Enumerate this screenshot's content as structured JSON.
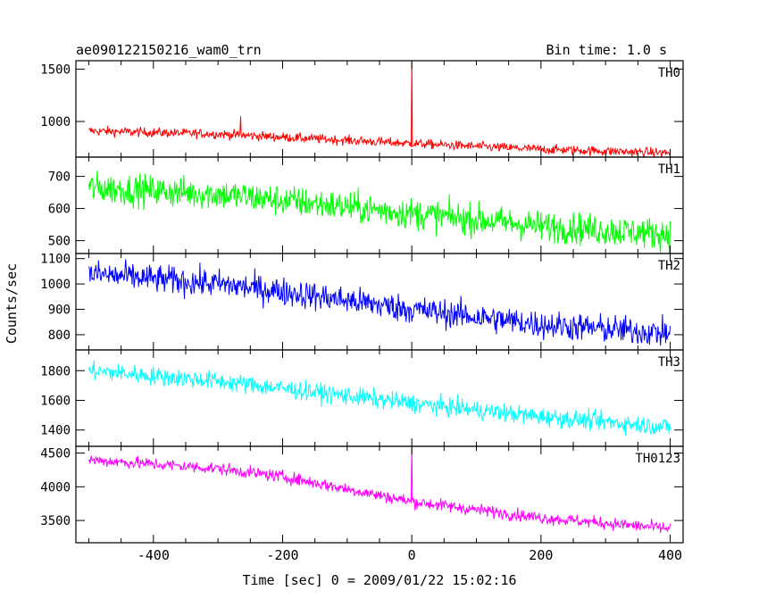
{
  "header": {
    "left": "ae090122150216_wam0_trn",
    "right": "Bin time: 1.0 s"
  },
  "ylabel": "Counts/sec",
  "xlabel": "Time [sec] 0 = 2009/01/22 15:02:16",
  "chart_data": {
    "type": "line",
    "xlim": [
      -520,
      420
    ],
    "x_ticks": [
      -400,
      -200,
      0,
      200,
      400
    ],
    "bin_time_s": 1.0,
    "t_start": -500,
    "t_end": 400,
    "grid": false,
    "panels": [
      {
        "name": "TH0",
        "color": "#ff0000",
        "ylim": [
          660,
          1580
        ],
        "y_ticks": [
          1000,
          1500
        ],
        "trend": {
          "x": [
            -500,
            -300,
            -200,
            0,
            200,
            400
          ],
          "y": [
            910,
            880,
            850,
            790,
            735,
            700
          ]
        },
        "noise": 32,
        "spikes": [
          {
            "x": 0,
            "y": 1580
          },
          {
            "x": -265,
            "y": 1050
          },
          {
            "x": 30,
            "y": 830
          }
        ]
      },
      {
        "name": "TH1",
        "color": "#00ff00",
        "ylim": [
          460,
          760
        ],
        "y_ticks": [
          500,
          600,
          700
        ],
        "trend": {
          "x": [
            -500,
            -300,
            -200,
            0,
            200,
            400
          ],
          "y": [
            665,
            645,
            625,
            585,
            545,
            520
          ]
        },
        "noise": 35,
        "spikes": []
      },
      {
        "name": "TH2",
        "color": "#0000ff",
        "ylim": [
          740,
          1120
        ],
        "y_ticks": [
          800,
          900,
          1000,
          1100
        ],
        "trend": {
          "x": [
            -500,
            -300,
            -200,
            0,
            200,
            400
          ],
          "y": [
            1040,
            1000,
            970,
            900,
            840,
            805
          ]
        },
        "noise": 40,
        "spikes": []
      },
      {
        "name": "TH3",
        "color": "#00ffff",
        "ylim": [
          1290,
          1940
        ],
        "y_ticks": [
          1400,
          1600,
          1800
        ],
        "trend": {
          "x": [
            -500,
            -300,
            -200,
            0,
            200,
            400
          ],
          "y": [
            1800,
            1730,
            1680,
            1580,
            1490,
            1420
          ]
        },
        "noise": 45,
        "spikes": []
      },
      {
        "name": "TH0123",
        "color": "#ff00ff",
        "ylim": [
          3170,
          4600
        ],
        "y_ticks": [
          3500,
          4000,
          4500
        ],
        "trend": {
          "x": [
            -500,
            -300,
            -200,
            0,
            200,
            400
          ],
          "y": [
            4400,
            4270,
            4150,
            3780,
            3540,
            3380
          ]
        },
        "noise": 65,
        "spikes": [
          {
            "x": 0,
            "y": 4600
          }
        ]
      }
    ]
  }
}
